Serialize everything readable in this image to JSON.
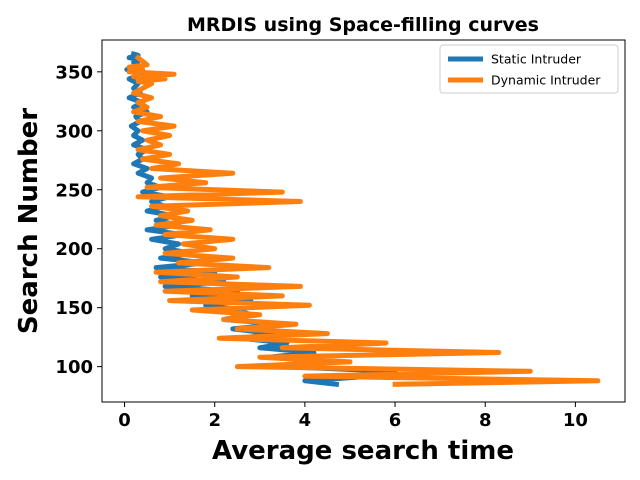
{
  "chart_data": {
    "type": "line",
    "title": "MRDIS using Space-filling curves",
    "xlabel": "Average search time",
    "ylabel": "Search Number",
    "xlim": [
      -0.5,
      11.1
    ],
    "ylim": [
      70,
      377
    ],
    "xticks": [
      0,
      2,
      4,
      6,
      8,
      10
    ],
    "yticks": [
      100,
      150,
      200,
      250,
      300,
      350
    ],
    "grid": false,
    "legend": "top-right",
    "series": [
      {
        "name": "Static Intruder",
        "color": "#1f77b4",
        "x": [
          4.7,
          4.0,
          5.5,
          6.0,
          3.5,
          4.5,
          3.2,
          4.2,
          3.0,
          3.6,
          2.6,
          3.3,
          2.4,
          3.5,
          2.2,
          2.8,
          2.5,
          1.8,
          2.8,
          1.5,
          2.5,
          0.9,
          2.2,
          0.8,
          2.0,
          0.7,
          1.8,
          0.8,
          1.5,
          0.9,
          1.2,
          0.6,
          1.3,
          0.5,
          1.2,
          0.7,
          1.1,
          0.5,
          0.9,
          0.6,
          1.0,
          0.4,
          0.8,
          0.5,
          0.6,
          0.3,
          0.5,
          0.2,
          0.4,
          0.3,
          0.5,
          0.2,
          0.4,
          0.2,
          0.3,
          0.15,
          0.35,
          0.25,
          0.5,
          0.2,
          0.4,
          0.1,
          0.35,
          0.2,
          0.3,
          0.1,
          0.4,
          0.05,
          0.3,
          0.2,
          0.35,
          0.1,
          0.3,
          0.2
        ],
        "y": [
          85,
          88,
          92,
          96,
          100,
          104,
          108,
          112,
          116,
          120,
          124,
          128,
          132,
          136,
          140,
          144,
          148,
          152,
          156,
          160,
          164,
          168,
          172,
          176,
          180,
          184,
          188,
          192,
          196,
          200,
          204,
          208,
          212,
          216,
          220,
          224,
          228,
          232,
          236,
          240,
          244,
          248,
          252,
          256,
          260,
          264,
          268,
          272,
          276,
          280,
          284,
          288,
          292,
          296,
          300,
          304,
          308,
          312,
          316,
          320,
          324,
          328,
          332,
          336,
          340,
          344,
          348,
          352,
          356,
          358,
          360,
          362,
          364,
          365
        ]
      },
      {
        "name": "Dynamic Intruder",
        "color": "#ff7f0e",
        "x": [
          6.0,
          10.5,
          4.0,
          9.0,
          2.5,
          5.0,
          3.0,
          8.3,
          3.5,
          5.8,
          2.1,
          4.5,
          2.5,
          3.8,
          2.2,
          3.0,
          1.5,
          4.1,
          1.0,
          3.5,
          0.9,
          3.9,
          0.8,
          2.5,
          0.7,
          3.2,
          1.2,
          2.4,
          0.9,
          2.0,
          1.3,
          2.4,
          0.9,
          1.9,
          0.7,
          1.5,
          0.8,
          1.4,
          0.6,
          3.9,
          0.3,
          3.5,
          0.5,
          1.8,
          0.8,
          2.4,
          0.6,
          1.2,
          0.4,
          1.0,
          0.3,
          0.8,
          0.5,
          1.0,
          0.4,
          1.1,
          0.3,
          0.8,
          0.2,
          0.5,
          0.3,
          0.6,
          0.2,
          0.4,
          0.6,
          0.3,
          0.9,
          0.2,
          1.1,
          0.1,
          0.4,
          0.1,
          0.5,
          0.3
        ],
        "y": [
          85,
          88,
          92,
          96,
          100,
          104,
          108,
          112,
          116,
          120,
          124,
          128,
          132,
          136,
          140,
          144,
          148,
          152,
          156,
          160,
          164,
          168,
          172,
          176,
          180,
          184,
          188,
          192,
          196,
          200,
          204,
          208,
          212,
          216,
          220,
          224,
          228,
          232,
          236,
          240,
          244,
          248,
          252,
          256,
          260,
          264,
          268,
          272,
          276,
          280,
          284,
          288,
          292,
          296,
          300,
          304,
          308,
          312,
          316,
          320,
          324,
          328,
          332,
          336,
          340,
          342,
          344,
          346,
          348,
          350,
          352,
          354,
          356,
          362
        ]
      }
    ]
  }
}
